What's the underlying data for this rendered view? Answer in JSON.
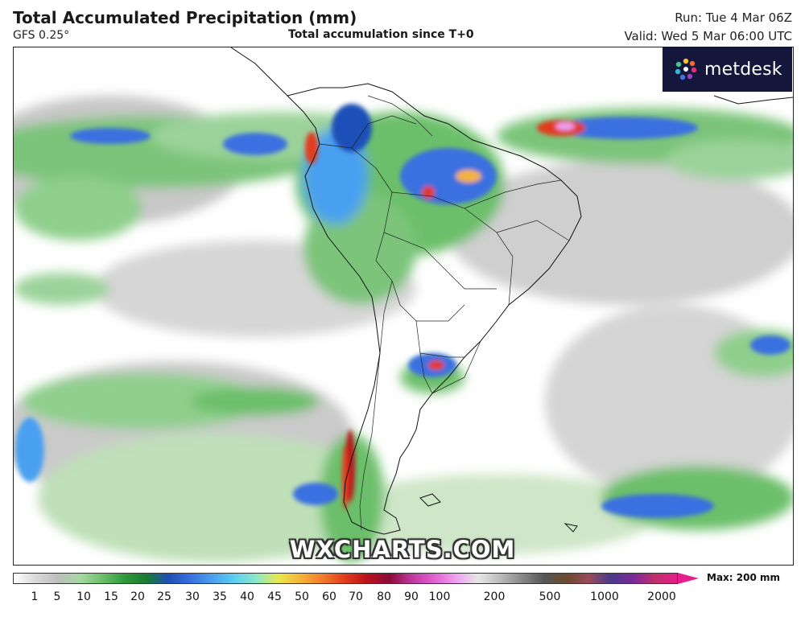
{
  "header": {
    "title": "Total Accumulated Precipitation (mm)",
    "model": "GFS 0.25°",
    "subtitle": "Total accumulation since T+0",
    "run": "Run: Tue 4 Mar 06Z",
    "valid": "Valid: Wed 5 Mar 06:00 UTC"
  },
  "logo": {
    "text": "metdesk",
    "icon": "metdesk-flower-logo",
    "background": "#14173b"
  },
  "watermark": "WXCHARTS.COM",
  "legend": {
    "max_label": "Max: 200 mm",
    "ticks": [
      "1",
      "5",
      "10",
      "15",
      "20",
      "25",
      "30",
      "35",
      "40",
      "45",
      "50",
      "60",
      "70",
      "80",
      "90",
      "100",
      "200",
      "500",
      "1000",
      "2000"
    ],
    "colors": [
      "#ffffff",
      "#d9d9d9",
      "#bdbdbd",
      "#a7d8a2",
      "#6cbf6a",
      "#2f9a3c",
      "#1b7a32",
      "#1f4fb8",
      "#3a6fe0",
      "#4aa0f0",
      "#5cd0f0",
      "#8ee8c8",
      "#e8e84a",
      "#f4b23a",
      "#f07a2a",
      "#e23a1e",
      "#b8121e",
      "#8c0b3a",
      "#c0389c",
      "#e060d0",
      "#f0a0f0",
      "#e6e6e6",
      "#bbbbbb",
      "#888888",
      "#555555",
      "#6b4a2e",
      "#9a4a5a",
      "#4a3a8a",
      "#7a2a9a",
      "#c0306a",
      "#e61e8c"
    ]
  },
  "map": {
    "region": "South America",
    "features": [
      "precipitation-field",
      "country-borders",
      "coastlines"
    ]
  }
}
